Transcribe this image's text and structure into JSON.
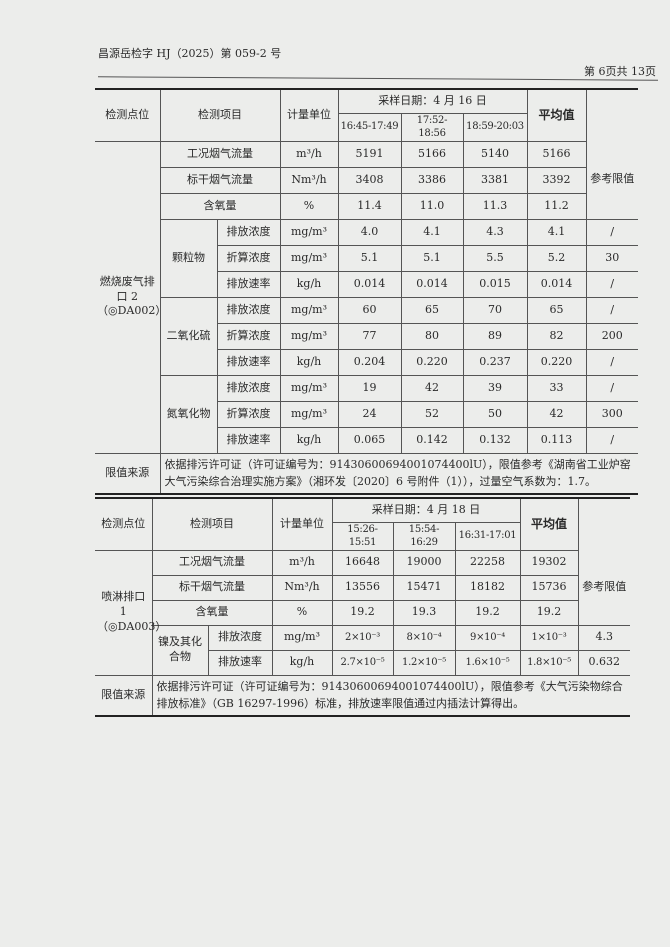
{
  "header": {
    "report_no": "昌源岳检字 HJ（2025）第 059-2 号",
    "page": "第 6页共 13页"
  },
  "cols": {
    "point": "检测点位",
    "item": "检测项目",
    "unit": "计量单位",
    "avg": "平均值",
    "ref": "参考限值",
    "source": "限值来源"
  },
  "table1": {
    "date": "采样日期：4 月 16 日",
    "times": [
      "16:45-17:49",
      "17:52-18:56",
      "18:59-20:03"
    ],
    "point": "燃烧废气排口 2（◎DA002）",
    "rows": [
      {
        "group": "",
        "item": "工况烟气流量",
        "unit": "m³/h",
        "v": [
          "5191",
          "5166",
          "5140"
        ],
        "avg": "5166"
      },
      {
        "group": "",
        "item": "标干烟气流量",
        "unit": "Nm³/h",
        "v": [
          "3408",
          "3386",
          "3381"
        ],
        "avg": "3392"
      },
      {
        "group": "",
        "item": "含氧量",
        "unit": "%",
        "v": [
          "11.4",
          "11.0",
          "11.3"
        ],
        "avg": "11.2"
      },
      {
        "group": "颗粒物",
        "item": "排放浓度",
        "unit": "mg/m³",
        "v": [
          "4.0",
          "4.1",
          "4.3"
        ],
        "avg": "4.1",
        "ref": "/"
      },
      {
        "group": "颗粒物",
        "item": "折算浓度",
        "unit": "mg/m³",
        "v": [
          "5.1",
          "5.1",
          "5.5"
        ],
        "avg": "5.2",
        "ref": "30"
      },
      {
        "group": "颗粒物",
        "item": "排放速率",
        "unit": "kg/h",
        "v": [
          "0.014",
          "0.014",
          "0.015"
        ],
        "avg": "0.014",
        "ref": "/"
      },
      {
        "group": "二氧化硫",
        "item": "排放浓度",
        "unit": "mg/m³",
        "v": [
          "60",
          "65",
          "70"
        ],
        "avg": "65",
        "ref": "/"
      },
      {
        "group": "二氧化硫",
        "item": "折算浓度",
        "unit": "mg/m³",
        "v": [
          "77",
          "80",
          "89"
        ],
        "avg": "82",
        "ref": "200"
      },
      {
        "group": "二氧化硫",
        "item": "排放速率",
        "unit": "kg/h",
        "v": [
          "0.204",
          "0.220",
          "0.237"
        ],
        "avg": "0.220",
        "ref": "/"
      },
      {
        "group": "氮氧化物",
        "item": "排放浓度",
        "unit": "mg/m³",
        "v": [
          "19",
          "42",
          "39"
        ],
        "avg": "33",
        "ref": "/"
      },
      {
        "group": "氮氧化物",
        "item": "折算浓度",
        "unit": "mg/m³",
        "v": [
          "24",
          "52",
          "50"
        ],
        "avg": "42",
        "ref": "300"
      },
      {
        "group": "氮氧化物",
        "item": "排放速率",
        "unit": "kg/h",
        "v": [
          "0.065",
          "0.142",
          "0.132"
        ],
        "avg": "0.113",
        "ref": "/"
      }
    ],
    "source": "依据排污许可证（许可证编号为：91430600694001074400lU），限值参考《湖南省工业炉窑大气污染综合治理实施方案》（湘环发〔2020〕6 号附件（1）），过量空气系数为：1.7。"
  },
  "table2": {
    "date": "采样日期：4 月 18 日",
    "times": [
      "15:26-15:51",
      "15:54-16:29",
      "16:31-17:01"
    ],
    "point": "喷淋排口 1（◎DA003）",
    "rows": [
      {
        "group": "",
        "item": "工况烟气流量",
        "unit": "m³/h",
        "v": [
          "16648",
          "19000",
          "22258"
        ],
        "avg": "19302"
      },
      {
        "group": "",
        "item": "标干烟气流量",
        "unit": "Nm³/h",
        "v": [
          "13556",
          "15471",
          "18182"
        ],
        "avg": "15736"
      },
      {
        "group": "",
        "item": "含氧量",
        "unit": "%",
        "v": [
          "19.2",
          "19.3",
          "19.2"
        ],
        "avg": "19.2"
      },
      {
        "group": "镍及其化合物",
        "item": "排放浓度",
        "unit": "mg/m³",
        "v": [
          "2×10⁻³",
          "8×10⁻⁴",
          "9×10⁻⁴"
        ],
        "avg": "1×10⁻³",
        "ref": "4.3"
      },
      {
        "group": "镍及其化合物",
        "item": "排放速率",
        "unit": "kg/h",
        "v": [
          "2.7×10⁻⁵",
          "1.2×10⁻⁵",
          "1.6×10⁻⁵"
        ],
        "avg": "1.8×10⁻⁵",
        "ref": "0.632"
      }
    ],
    "source": "依据排污许可证（许可证编号为：91430600694001074400lU），限值参考《大气污染物综合排放标准》（GB 16297-1996）标准，排放速率限值通过内插法计算得出。"
  }
}
